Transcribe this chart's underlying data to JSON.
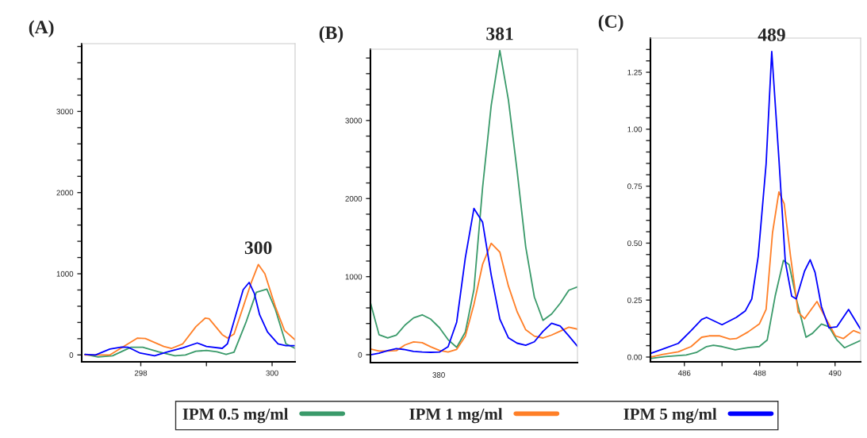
{
  "chart_data": [
    {
      "type": "line",
      "title": "(A)",
      "legend": "bottom",
      "grid": false,
      "marker": "none",
      "line_style": "solid",
      "xlim": [
        297.1,
        300.35
      ],
      "xticks": [
        298,
        {
          "value": 299,
          "label": null
        },
        300
      ],
      "ylim": [
        -85,
        3835
      ],
      "yticks": [
        0,
        {
          "value": 200,
          "label": null
        },
        {
          "value": 400,
          "label": null
        },
        {
          "value": 600,
          "label": null
        },
        {
          "value": 800,
          "label": null
        },
        1000,
        {
          "value": 1200,
          "label": null
        },
        {
          "value": 1400,
          "label": null
        },
        {
          "value": 1600,
          "label": null
        },
        {
          "value": 1800,
          "label": null
        },
        2000,
        {
          "value": 2200,
          "label": null
        },
        {
          "value": 2400,
          "label": null
        },
        {
          "value": 2600,
          "label": null
        },
        {
          "value": 2800,
          "label": null
        },
        3000,
        {
          "value": 3200,
          "label": null
        },
        {
          "value": 3400,
          "label": null
        },
        {
          "value": 3600,
          "label": null
        },
        {
          "value": 3800,
          "label": null
        }
      ],
      "annotations": [
        {
          "text": "300",
          "x": 299.79,
          "y": 1114
        }
      ],
      "series": [
        {
          "name": "IPM 0.5 mg/ml",
          "color": "#3a9a6a",
          "x": [
            297.15,
            297.35,
            297.57,
            297.85,
            298.03,
            298.27,
            298.52,
            298.68,
            298.84,
            299.0,
            299.16,
            299.3,
            299.42,
            299.6,
            299.76,
            299.92,
            300.05,
            300.21,
            300.35
          ],
          "values": [
            7,
            -26,
            -10,
            94,
            94,
            39,
            -10,
            0,
            46,
            55,
            39,
            7,
            33,
            397,
            772,
            811,
            560,
            137,
            81
          ]
        },
        {
          "name": "IPM 1 mg/ml",
          "color": "#ff7f27",
          "x": [
            297.15,
            297.53,
            297.95,
            298.07,
            298.35,
            298.47,
            298.64,
            298.84,
            298.98,
            299.04,
            299.24,
            299.32,
            299.42,
            299.56,
            299.68,
            299.79,
            299.89,
            300.05,
            300.19,
            300.35
          ],
          "values": [
            0,
            0,
            208,
            202,
            104,
            81,
            137,
            349,
            453,
            446,
            251,
            208,
            257,
            593,
            886,
            1114,
            1000,
            593,
            300,
            186
          ]
        },
        {
          "name": "IPM 5 mg/ml",
          "color": "#0000ff",
          "x": [
            297.15,
            297.31,
            297.53,
            297.71,
            297.81,
            297.99,
            298.21,
            298.39,
            298.64,
            298.86,
            299.0,
            299.24,
            299.32,
            299.46,
            299.56,
            299.65,
            299.73,
            299.81,
            299.93,
            300.09,
            300.21,
            300.35
          ],
          "values": [
            7,
            0,
            72,
            98,
            94,
            23,
            -10,
            33,
            88,
            147,
            104,
            81,
            137,
            528,
            805,
            893,
            756,
            495,
            283,
            137,
            114,
            114
          ]
        }
      ]
    },
    {
      "type": "line",
      "title": "(B)",
      "grid": false,
      "marker": "none",
      "line_style": "solid",
      "categories": [
        null,
        null,
        null,
        null,
        null,
        null,
        null,
        null,
        null,
        null,
        null,
        null,
        null,
        null,
        null,
        null,
        null,
        null,
        null,
        null,
        null,
        null,
        null,
        null,
        null
      ],
      "ylim": [
        -101,
        3913
      ],
      "yticks": [
        0,
        {
          "value": 200,
          "label": null
        },
        {
          "value": 400,
          "label": null
        },
        {
          "value": 600,
          "label": null
        },
        {
          "value": 800,
          "label": null
        },
        1000,
        {
          "value": 1200,
          "label": null
        },
        {
          "value": 1400,
          "label": null
        },
        {
          "value": 1600,
          "label": null
        },
        {
          "value": 1800,
          "label": null
        },
        2000,
        {
          "value": 2200,
          "label": null
        },
        {
          "value": 2400,
          "label": null
        },
        {
          "value": 2600,
          "label": null
        },
        {
          "value": 2800,
          "label": null
        },
        3000,
        {
          "value": 3200,
          "label": null
        },
        {
          "value": 3400,
          "label": null
        },
        {
          "value": 3600,
          "label": null
        },
        {
          "value": 3800,
          "label": null
        }
      ],
      "annotations": [
        {
          "text": "381",
          "y": 3896
        },
        "380"
      ],
      "series": [
        {
          "color": "#3a9a6a",
          "values": [
            666,
            256,
            215,
            251,
            379,
            472,
            511,
            455,
            346,
            193,
            95,
            290,
            836,
            2140,
            3193,
            3896,
            3258,
            2357,
            1382,
            740,
            440,
            522,
            659,
            826,
            869
          ]
        },
        {
          "color": "#ff7f27",
          "values": [
            74,
            47,
            47,
            52,
            125,
            165,
            154,
            101,
            56,
            34,
            69,
            237,
            646,
            1157,
            1427,
            1314,
            878,
            552,
            320,
            238,
            214,
            252,
            302,
            352,
            328
          ]
        },
        {
          "color": "#0000ff",
          "values": [
            0,
            19,
            52,
            79,
            66,
            43,
            34,
            31,
            34,
            102,
            418,
            1241,
            1874,
            1698,
            1021,
            457,
            216,
            148,
            122,
            166,
            299,
            404,
            367,
            241,
            108
          ]
        }
      ]
    },
    {
      "type": "line",
      "title": "(C)",
      "grid": false,
      "marker": "none",
      "line_style": "solid",
      "xlim": [
        485.1,
        490.68
      ],
      "xticks": [
        486,
        {
          "value": 487,
          "label": null
        },
        488,
        {
          "value": 489,
          "label": null
        },
        490
      ],
      "ylim": [
        -0.021,
        1.4
      ],
      "yticks": [
        {
          "value": 0,
          "label": "0.00"
        },
        {
          "value": 0.05,
          "label": null
        },
        {
          "value": 0.1,
          "label": null
        },
        {
          "value": 0.15,
          "label": null
        },
        {
          "value": 0.2,
          "label": null
        },
        0.25,
        {
          "value": 0.3,
          "label": null
        },
        {
          "value": 0.35,
          "label": null
        },
        {
          "value": 0.4,
          "label": null
        },
        {
          "value": 0.45,
          "label": null
        },
        {
          "value": 0.5,
          "label": "0.50"
        },
        {
          "value": 0.55,
          "label": null
        },
        {
          "value": 0.6,
          "label": null
        },
        {
          "value": 0.65,
          "label": null
        },
        {
          "value": 0.7,
          "label": null
        },
        0.75,
        {
          "value": 0.8,
          "label": null
        },
        {
          "value": 0.85,
          "label": null
        },
        {
          "value": 0.9,
          "label": null
        },
        {
          "value": 0.95,
          "label": null
        },
        {
          "value": 1.0,
          "label": "1.00"
        },
        {
          "value": 1.05,
          "label": null
        },
        {
          "value": 1.1,
          "label": null
        },
        {
          "value": 1.15,
          "label": null
        },
        {
          "value": 1.2,
          "label": null
        },
        1.25,
        {
          "value": 1.3,
          "label": null
        },
        {
          "value": 1.35,
          "label": null
        }
      ],
      "annotations": [
        {
          "text": "489",
          "x": 488.32,
          "y": 1.341
        }
      ],
      "series": [
        {
          "color": "#3a9a6a",
          "x": [
            485.12,
            485.5,
            486.05,
            486.32,
            486.59,
            486.77,
            487.0,
            487.35,
            487.69,
            487.99,
            488.2,
            488.41,
            488.63,
            488.78,
            488.99,
            489.23,
            489.4,
            489.64,
            489.84,
            490.05,
            490.25,
            490.68
          ],
          "values": [
            -0.006,
            0.002,
            0.009,
            0.02,
            0.046,
            0.052,
            0.046,
            0.032,
            0.041,
            0.046,
            0.075,
            0.267,
            0.424,
            0.406,
            0.244,
            0.087,
            0.104,
            0.145,
            0.133,
            0.075,
            0.041,
            0.073
          ]
        },
        {
          "color": "#ff7f27",
          "x": [
            485.12,
            485.43,
            485.84,
            486.18,
            486.46,
            486.66,
            486.94,
            487.21,
            487.38,
            487.69,
            487.99,
            488.17,
            488.34,
            488.51,
            488.65,
            488.82,
            489.02,
            489.19,
            489.52,
            489.74,
            490.01,
            490.22,
            490.49,
            490.68
          ],
          "values": [
            0,
            0.012,
            0.023,
            0.046,
            0.087,
            0.093,
            0.093,
            0.079,
            0.081,
            0.11,
            0.145,
            0.209,
            0.545,
            0.725,
            0.673,
            0.441,
            0.197,
            0.168,
            0.244,
            0.174,
            0.093,
            0.081,
            0.116,
            0.104
          ]
        },
        {
          "color": "#0000ff",
          "x": [
            485.12,
            485.43,
            485.84,
            486.18,
            486.46,
            486.59,
            487.0,
            487.38,
            487.62,
            487.79,
            487.96,
            488.17,
            488.32,
            488.51,
            488.68,
            488.85,
            488.97,
            489.19,
            489.34,
            489.47,
            489.64,
            489.84,
            490.05,
            490.36,
            490.68
          ],
          "values": [
            0.017,
            0.035,
            0.06,
            0.116,
            0.165,
            0.174,
            0.142,
            0.174,
            0.203,
            0.255,
            0.441,
            0.847,
            1.341,
            0.87,
            0.418,
            0.267,
            0.255,
            0.377,
            0.427,
            0.371,
            0.221,
            0.128,
            0.133,
            0.209,
            0.122
          ]
        }
      ]
    }
  ]
}
